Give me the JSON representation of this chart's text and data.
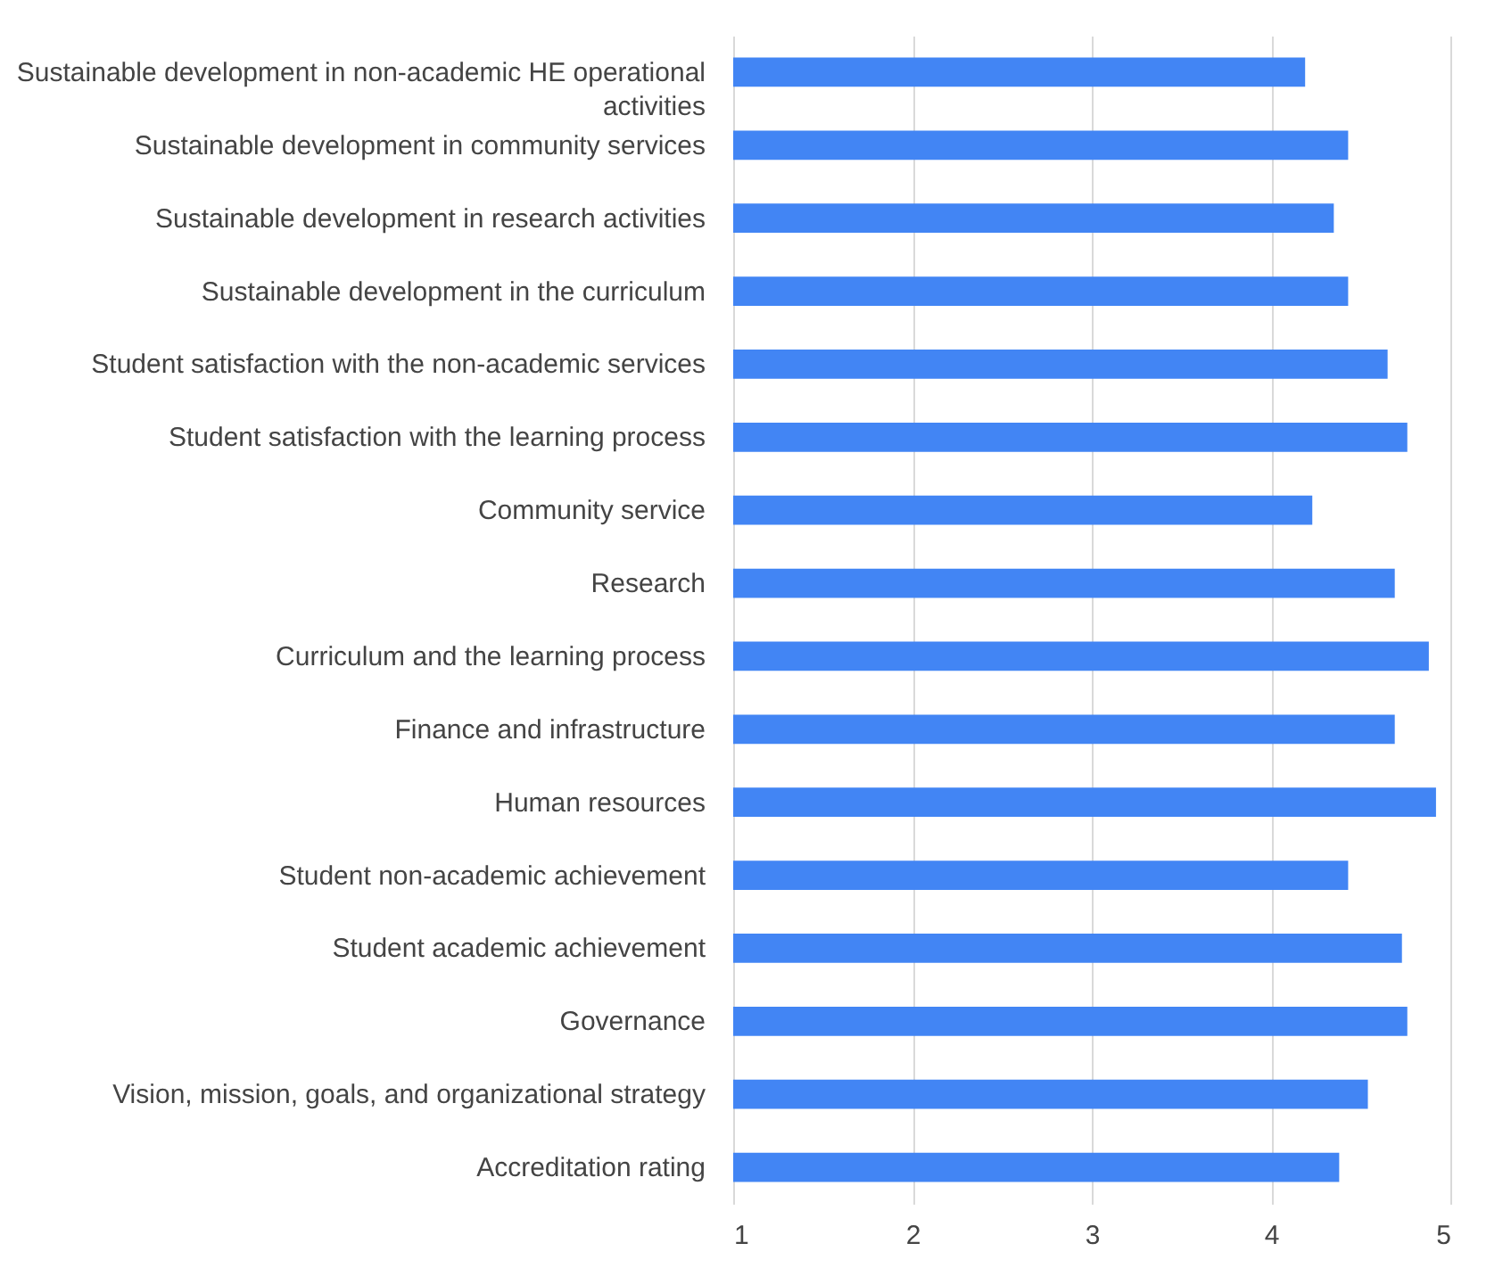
{
  "chart_data": {
    "type": "bar",
    "orientation": "horizontal",
    "categories": [
      "Sustainable development in non-academic HE operational activities",
      "Sustainable development in community services",
      "Sustainable development in research activities",
      "Sustainable development in the curriculum",
      "Student satisfaction with the non-academic services",
      "Student satisfaction with the learning process",
      "Community service",
      "Research",
      "Curriculum and the learning process",
      "Finance and infrastructure",
      "Human resources",
      "Student non-academic achievement",
      "Student academic achievement",
      "Governance",
      "Vision, mission, goals, and organizational strategy",
      "Accreditation rating"
    ],
    "values": [
      4.19,
      4.43,
      4.35,
      4.43,
      4.65,
      4.76,
      4.23,
      4.69,
      4.88,
      4.69,
      4.92,
      4.43,
      4.73,
      4.76,
      4.54,
      4.38
    ],
    "color": "#4285f4",
    "xlim": [
      1,
      5
    ],
    "xticks": [
      1,
      2,
      3,
      4,
      5
    ],
    "grid": "x"
  }
}
